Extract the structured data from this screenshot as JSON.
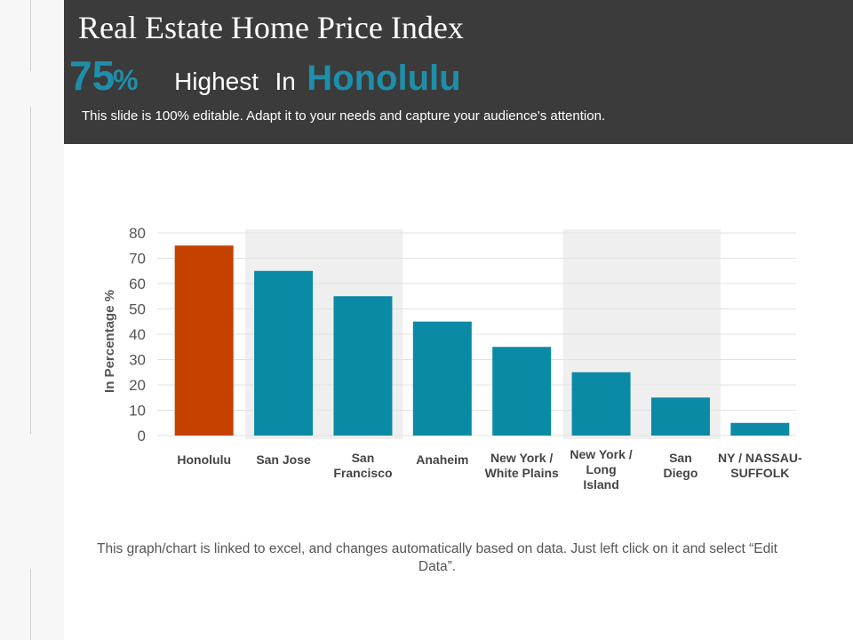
{
  "header": {
    "title": "Real Estate Home Price Index",
    "highlight_value": "75",
    "highlight_unit": "%",
    "highlight_text": "Highest",
    "highlight_in": "In",
    "highlight_city": "Honolulu",
    "subtitle": "This slide is 100% editable. Adapt it to your needs and capture your audience's attention."
  },
  "footnote": "This graph/chart is linked to excel, and changes automatically based on data. Just left click on it and select “Edit Data”.",
  "colors": {
    "header_bg": "#3b3b3b",
    "accent": "#1e8faa",
    "bar": "#0a8aa5",
    "bar_highlight": "#c44100",
    "band": "#efefef"
  },
  "chart_data": {
    "type": "bar",
    "categories": [
      "Honolulu",
      "San Jose",
      "San Francisco",
      "Anaheim",
      "New York / White Plains",
      "New York / Long Island",
      "San Diego",
      "NY / NASSAU-SUFFOLK"
    ],
    "category_label_lines": [
      [
        "Honolulu"
      ],
      [
        "San Jose"
      ],
      [
        "San",
        "Francisco"
      ],
      [
        "Anaheim"
      ],
      [
        "New York /",
        "White Plains"
      ],
      [
        "New York /",
        "Long",
        "Island"
      ],
      [
        "San",
        "Diego"
      ],
      [
        "NY / NASSAU-",
        "SUFFOLK"
      ]
    ],
    "values": [
      75,
      65,
      55,
      45,
      35,
      25,
      15,
      5
    ],
    "highlighted_category": "Honolulu",
    "shaded_categories": [
      "San Jose",
      "San Francisco",
      "New York / Long Island",
      "San Diego"
    ],
    "ylabel": "In Percentage %",
    "ylim": [
      0,
      80
    ],
    "yticks": [
      0,
      10,
      20,
      30,
      40,
      50,
      60,
      70,
      80
    ],
    "grid": true
  }
}
